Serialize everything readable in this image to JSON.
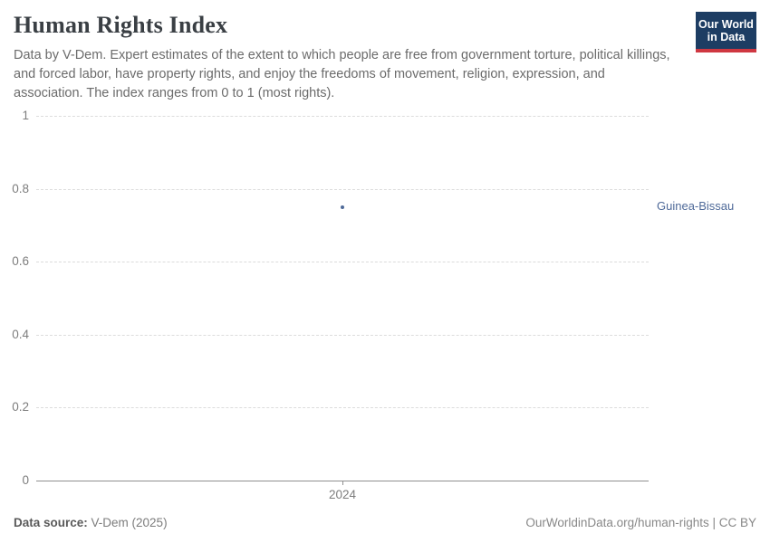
{
  "header": {
    "title": "Human Rights Index",
    "subtitle": "Data by V-Dem. Expert estimates of the extent to which people are free from government torture, political killings, and forced labor, have property rights, and enjoy the freedoms of movement, religion, expression, and association. The index ranges from 0 to 1 (most rights).",
    "logo": {
      "line1": "Our World",
      "line2": "in Data",
      "bg_color": "#1d3d63",
      "accent_color": "#cf3741"
    }
  },
  "chart_data": {
    "type": "scatter",
    "title": "Human Rights Index",
    "series": [
      {
        "name": "Guinea-Bissau",
        "x": [
          2024
        ],
        "y": [
          0.75
        ],
        "color": "#4f6a99"
      }
    ],
    "xlabel": "",
    "ylabel": "",
    "xlim": [
      2023.5,
      2024.5
    ],
    "ylim": [
      0,
      1
    ],
    "xticks": [
      2024
    ],
    "yticks": [
      0,
      0.2,
      0.4,
      0.6,
      0.8,
      1
    ],
    "grid": "horizontal dashed",
    "legend_position": "right-of-point",
    "entity_label": "Guinea-Bissau"
  },
  "footer": {
    "datasource_label": "Data source:",
    "datasource_value": " V-Dem (2025)",
    "right_text": "OurWorldinData.org/human-rights | CC BY"
  }
}
